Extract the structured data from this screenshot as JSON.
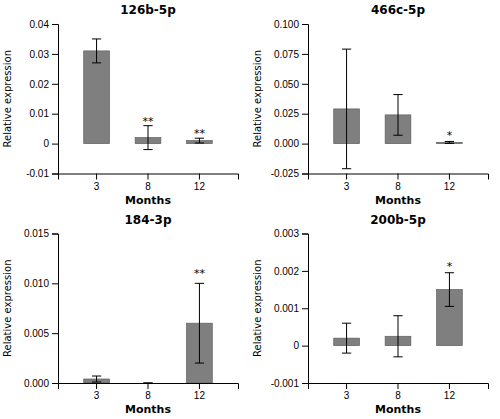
{
  "chart_data": [
    {
      "type": "bar",
      "title": "126b-5p",
      "xlabel": "Months",
      "ylabel": "Relative expression",
      "categories": [
        "3",
        "8",
        "12"
      ],
      "values": [
        0.031,
        0.002,
        0.001
      ],
      "errors": [
        0.004,
        0.004,
        0.0008
      ],
      "color": "#7f7f7f",
      "grid": false,
      "ylim": [
        -0.01,
        0.04
      ],
      "yticks": [
        -0.01,
        0,
        0.01,
        0.02,
        0.03,
        0.04
      ],
      "annotations": [
        {
          "text": "**",
          "x": "8",
          "y": 0.006
        },
        {
          "text": "**",
          "x": "12",
          "y": 0.0018
        }
      ]
    },
    {
      "type": "bar",
      "title": "466c-5p",
      "xlabel": "Months",
      "ylabel": "Relative expression",
      "categories": [
        "3",
        "8",
        "12"
      ],
      "values": [
        0.029,
        0.024,
        0.001
      ],
      "errors": [
        0.05,
        0.017,
        0.0008
      ],
      "color": "#7f7f7f",
      "grid": false,
      "ylim": [
        -0.025,
        0.1
      ],
      "yticks": [
        {
          "value": -0.025,
          "label": "-0.025"
        },
        {
          "value": 0,
          "label": "0.000"
        },
        {
          "value": 0.025,
          "label": "0.025"
        },
        {
          "value": 0.05,
          "label": "0.050"
        },
        {
          "value": 0.075,
          "label": "0.075"
        },
        {
          "value": 0.1,
          "label": "0.100"
        }
      ],
      "annotations": [
        {
          "text": "*",
          "x": "12",
          "y": 0.003
        }
      ]
    },
    {
      "type": "bar",
      "title": "184-3p",
      "xlabel": "Months",
      "ylabel": "Relative expression",
      "categories": [
        "3",
        "8",
        "12"
      ],
      "values": [
        0.0004,
        0.0,
        0.006
      ],
      "errors": [
        0.0003,
        0.0,
        0.004
      ],
      "color": "#7f7f7f",
      "grid": false,
      "ylim": [
        0,
        0.015
      ],
      "yticks": [
        {
          "value": 0,
          "label": "0.000"
        },
        {
          "value": 0.005,
          "label": "0.005"
        },
        {
          "value": 0.01,
          "label": "0.010"
        },
        {
          "value": 0.015,
          "label": "0.015"
        }
      ],
      "annotations": [
        {
          "text": "**",
          "x": "12",
          "y": 0.0105
        }
      ]
    },
    {
      "type": "bar",
      "title": "200b-5p",
      "xlabel": "Months",
      "ylabel": "Relative expression",
      "categories": [
        "3",
        "8",
        "12"
      ],
      "values": [
        0.0002,
        0.00025,
        0.0015
      ],
      "errors": [
        0.0004,
        0.00055,
        0.00045
      ],
      "color": "#7f7f7f",
      "grid": false,
      "ylim": [
        -0.001,
        0.003
      ],
      "yticks": [
        -0.001,
        0,
        0.001,
        0.002,
        0.003
      ],
      "annotations": [
        {
          "text": "*",
          "x": "12",
          "y": 0.002
        }
      ]
    }
  ]
}
